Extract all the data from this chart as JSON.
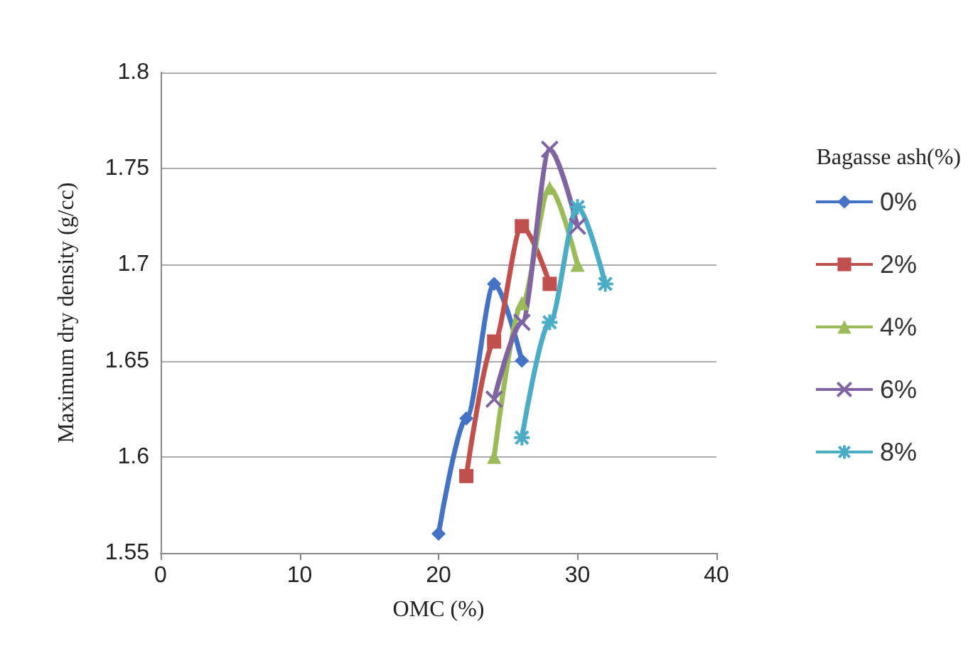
{
  "chart_data": {
    "type": "line",
    "xlabel": "OMC (%)",
    "ylabel": "Maximum dry density (g/cc)",
    "legend_title": "Bagasse ash(%)",
    "legend": "right",
    "grid": "y",
    "xlim": [
      0,
      40
    ],
    "xticks": [
      0,
      10,
      20,
      30,
      40
    ],
    "ylim": [
      1.55,
      1.8
    ],
    "yticks": [
      1.55,
      1.6,
      1.65,
      1.7,
      1.75,
      1.8
    ],
    "series": [
      {
        "name": "0%",
        "color": "#4472c4",
        "marker": "diamond",
        "x": [
          20,
          22,
          24,
          26
        ],
        "values": [
          1.56,
          1.62,
          1.69,
          1.65
        ]
      },
      {
        "name": "2%",
        "color": "#c0504d",
        "marker": "square",
        "x": [
          22,
          24,
          26,
          28
        ],
        "values": [
          1.59,
          1.66,
          1.72,
          1.69
        ]
      },
      {
        "name": "4%",
        "color": "#9bbb59",
        "marker": "triangle",
        "x": [
          24,
          26,
          28,
          30
        ],
        "values": [
          1.6,
          1.68,
          1.74,
          1.7
        ]
      },
      {
        "name": "6%",
        "color": "#8064a2",
        "marker": "cross",
        "x": [
          24,
          26,
          28,
          30
        ],
        "values": [
          1.63,
          1.67,
          1.76,
          1.72
        ]
      },
      {
        "name": "8%",
        "color": "#4bacc6",
        "marker": "star",
        "x": [
          26,
          28,
          30,
          32
        ],
        "values": [
          1.61,
          1.67,
          1.73,
          1.69
        ]
      }
    ]
  }
}
